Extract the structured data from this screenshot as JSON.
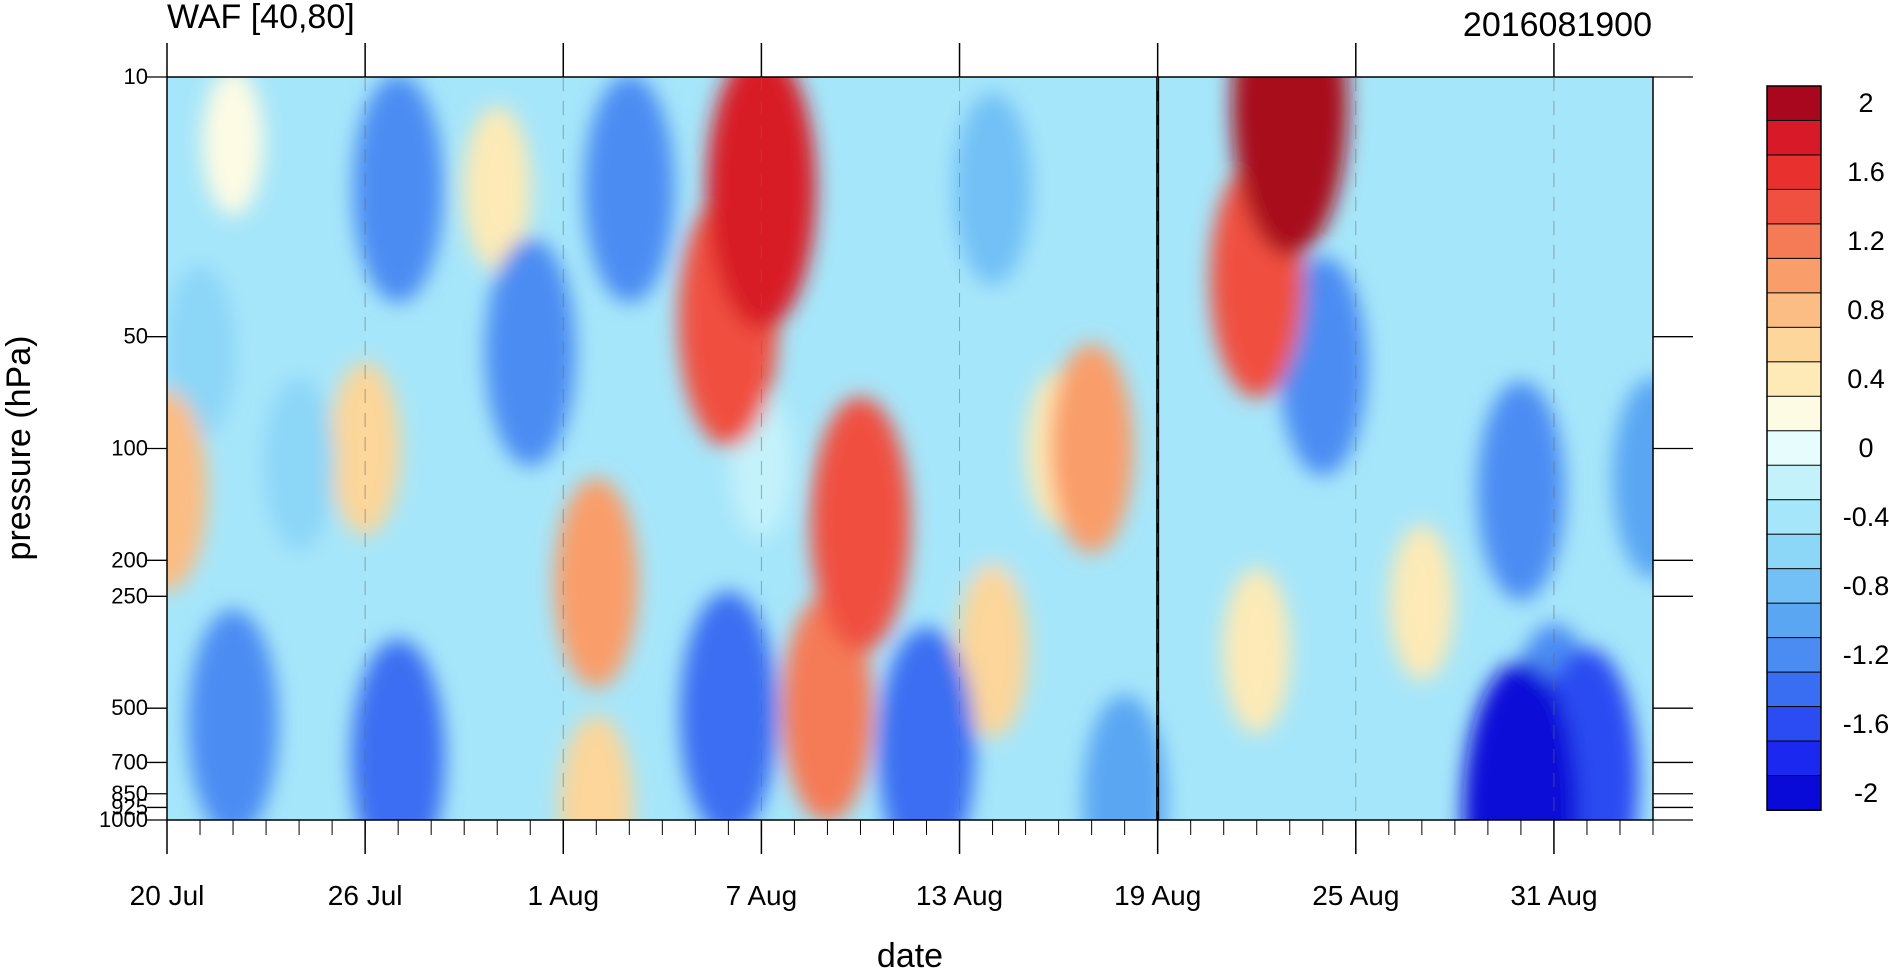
{
  "chart_data": {
    "type": "heatmap",
    "title_left": "WAF [40,80]",
    "title_right": "2016081900",
    "xlabel": "date",
    "ylabel": "pressure (hPa)",
    "y_scale": "log",
    "y_reversed": true,
    "ylim": [
      1000,
      10
    ],
    "y_levels": [
      1000,
      925,
      850,
      700,
      500,
      250,
      200,
      100,
      50,
      10
    ],
    "y_tick_labels": [
      "1000",
      "925",
      "850",
      "700",
      "500",
      "250",
      "200",
      "100",
      "50",
      "10"
    ],
    "x_start": "2016-07-20",
    "x_end": "2016-09-03",
    "x_ticks": [
      "2016-07-20",
      "2016-07-26",
      "2016-08-01",
      "2016-08-07",
      "2016-08-13",
      "2016-08-19",
      "2016-08-25",
      "2016-08-31"
    ],
    "x_tick_labels": [
      "20 Jul",
      "26 Jul",
      "1 Aug",
      "7 Aug",
      "13 Aug",
      "19 Aug",
      "25 Aug",
      "31 Aug"
    ],
    "reference_line_date": "2016-08-19",
    "grid": false,
    "colorbar": {
      "orientation": "vertical",
      "placement": "right",
      "levels": [
        -2,
        -1.8,
        -1.6,
        -1.4,
        -1.2,
        -1,
        -0.8,
        -0.6,
        -0.4,
        -0.2,
        0,
        0.2,
        0.4,
        0.6,
        0.8,
        1,
        1.2,
        1.4,
        1.6,
        1.8,
        2
      ],
      "colors": [
        "#0a0ad8",
        "#1a28f0",
        "#2a4cf2",
        "#3a6ef2",
        "#4b8cf3",
        "#5aa6f3",
        "#72c0f6",
        "#8cd6f8",
        "#a6e6fa",
        "#c4f2fb",
        "#e6fcfd",
        "#fdfbe4",
        "#fdeab6",
        "#fcd69a",
        "#fbbd84",
        "#f99e6a",
        "#f57a56",
        "#f0503f",
        "#e8302f",
        "#d81a28",
        "#a8071e"
      ],
      "tick_labels": [
        "2",
        "1.6",
        "1.2",
        "0.8",
        "0.4",
        "0",
        "-0.4",
        "-0.8",
        "-1.2",
        "-1.6",
        "-2"
      ],
      "tick_values": [
        2,
        1.6,
        1.2,
        0.8,
        0.4,
        0,
        -0.4,
        -0.8,
        -1.2,
        -1.6,
        -2
      ]
    },
    "features": [
      {
        "date": "2016-08-07",
        "p": 20,
        "value": 1.8
      },
      {
        "date": "2016-08-06",
        "p": 45,
        "value": 1.5
      },
      {
        "date": "2016-08-10",
        "p": 160,
        "value": 1.5
      },
      {
        "date": "2016-08-09",
        "p": 500,
        "value": 1.2
      },
      {
        "date": "2016-08-23",
        "p": 12,
        "value": 2.0
      },
      {
        "date": "2016-08-22",
        "p": 35,
        "value": 1.3
      },
      {
        "date": "2016-08-17",
        "p": 100,
        "value": 1.0
      },
      {
        "date": "2016-08-02",
        "p": 230,
        "value": 1.0
      },
      {
        "date": "2016-07-20",
        "p": 130,
        "value": 0.9
      },
      {
        "date": "2016-07-26",
        "p": 100,
        "value": 0.6
      },
      {
        "date": "2016-07-30",
        "p": 20,
        "value": 0.5
      },
      {
        "date": "2016-07-22",
        "p": 15,
        "value": 0.3
      },
      {
        "date": "2016-08-14",
        "p": 350,
        "value": 0.6
      },
      {
        "date": "2016-08-22",
        "p": 350,
        "value": 0.5
      },
      {
        "date": "2016-08-02",
        "p": 920,
        "value": 0.7
      },
      {
        "date": "2016-08-27",
        "p": 260,
        "value": 0.4
      },
      {
        "date": "2016-08-16",
        "p": 100,
        "value": 0.4
      },
      {
        "date": "2016-07-27",
        "p": 20,
        "value": -1.2
      },
      {
        "date": "2016-08-03",
        "p": 20,
        "value": -1.2
      },
      {
        "date": "2016-08-14",
        "p": 20,
        "value": -0.8
      },
      {
        "date": "2016-07-31",
        "p": 55,
        "value": -1.2
      },
      {
        "date": "2016-07-21",
        "p": 55,
        "value": -0.6
      },
      {
        "date": "2016-07-22",
        "p": 550,
        "value": -1.2
      },
      {
        "date": "2016-07-27",
        "p": 680,
        "value": -1.3
      },
      {
        "date": "2016-08-06",
        "p": 520,
        "value": -1.4
      },
      {
        "date": "2016-08-12",
        "p": 650,
        "value": -1.4
      },
      {
        "date": "2016-08-18",
        "p": 880,
        "value": -1.0
      },
      {
        "date": "2016-08-24",
        "p": 60,
        "value": -1.1
      },
      {
        "date": "2016-08-30",
        "p": 950,
        "value": -2.0
      },
      {
        "date": "2016-09-01",
        "p": 780,
        "value": -1.6
      },
      {
        "date": "2016-08-31",
        "p": 600,
        "value": -1.2
      },
      {
        "date": "2016-08-30",
        "p": 130,
        "value": -1.1
      },
      {
        "date": "2016-09-03",
        "p": 120,
        "value": -0.9
      },
      {
        "date": "2016-08-29",
        "p": 30,
        "value": -0.4
      },
      {
        "date": "2016-08-07",
        "p": 110,
        "value": -0.3
      },
      {
        "date": "2016-08-14",
        "p": 190,
        "value": -0.4
      },
      {
        "date": "2016-07-24",
        "p": 110,
        "value": -0.6
      }
    ]
  }
}
